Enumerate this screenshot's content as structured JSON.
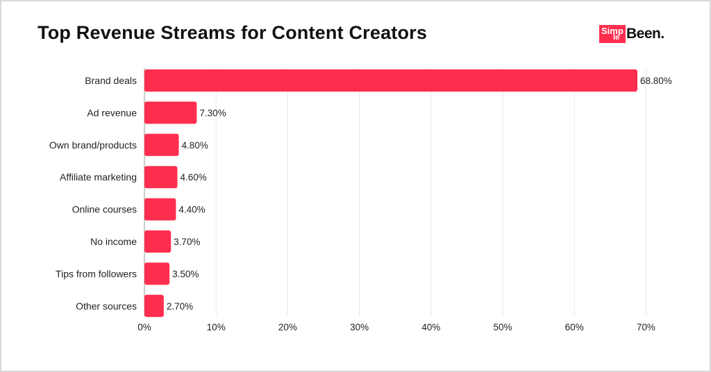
{
  "header": {
    "title": "Top Revenue Streams for Content Creators"
  },
  "logo": {
    "word_1": "Simp",
    "word_2": "le",
    "word_3": "Been."
  },
  "colors": {
    "bar": "#ff2e4f",
    "grid": "#e6e6e6",
    "text": "#222222"
  },
  "chart_data": {
    "type": "bar",
    "orientation": "horizontal",
    "title": "Top Revenue Streams for Content Creators",
    "categories": [
      "Brand deals",
      "Ad revenue",
      "Own brand/products",
      "Affiliate marketing",
      "Online courses",
      "No income",
      "Tips from followers",
      "Other sources"
    ],
    "values": [
      68.8,
      7.3,
      4.8,
      4.6,
      4.4,
      3.7,
      3.5,
      2.7
    ],
    "value_labels": [
      "68.80%",
      "7.30%",
      "4.80%",
      "4.60%",
      "4.40%",
      "3.70%",
      "3.50%",
      "2.70%"
    ],
    "x_ticks": [
      "0%",
      "10%",
      "20%",
      "30%",
      "40%",
      "50%",
      "60%",
      "70%"
    ],
    "xlim": [
      0,
      70
    ],
    "xlabel": "",
    "ylabel": "",
    "grid": true,
    "legend": "none"
  }
}
